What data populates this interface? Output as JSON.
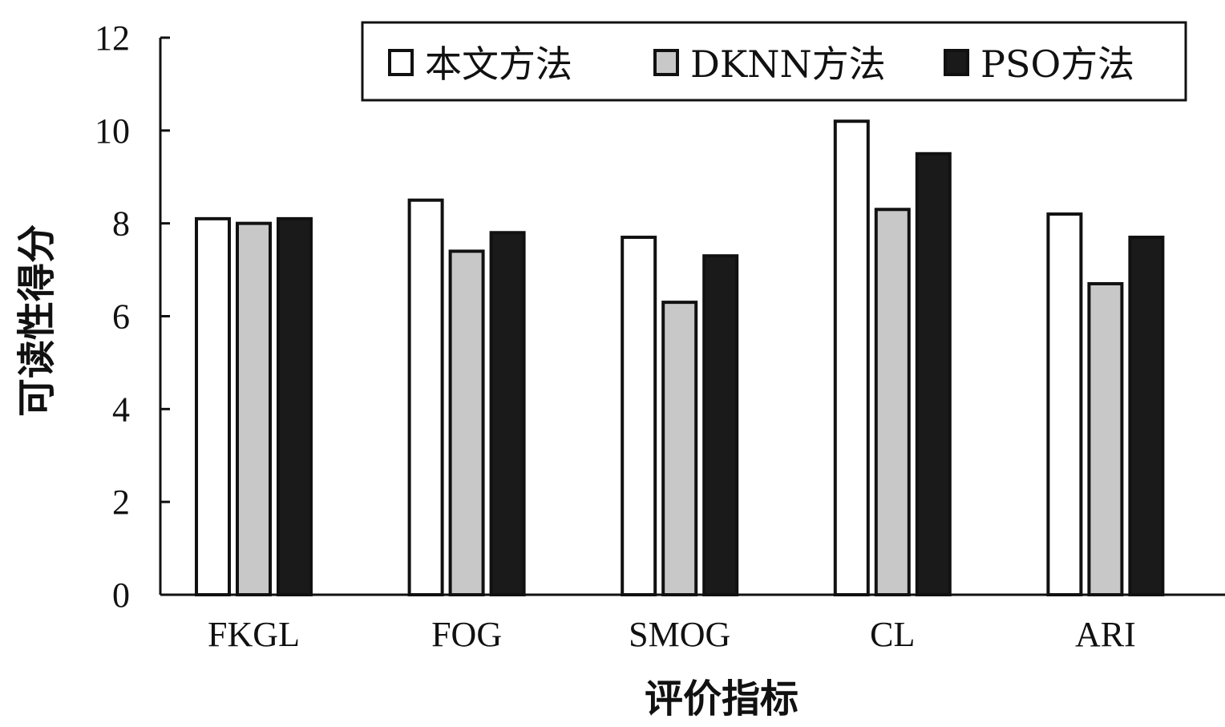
{
  "chart_data": {
    "type": "bar",
    "categories": [
      "FKGL",
      "FOG",
      "SMOG",
      "CL",
      "ARI"
    ],
    "series": [
      {
        "name": "本文方法",
        "values": [
          8.1,
          8.5,
          7.7,
          10.2,
          8.2
        ],
        "color": "#ffffff"
      },
      {
        "name": "DKNN方法",
        "values": [
          8.0,
          7.4,
          6.3,
          8.3,
          6.7
        ],
        "color": "#c8c8c8"
      },
      {
        "name": "PSO方法",
        "values": [
          8.1,
          7.8,
          7.3,
          9.5,
          7.7
        ],
        "color": "#1a1a1a"
      }
    ],
    "xlabel": "评价指标",
    "ylabel": "可读性得分",
    "ylim": [
      0,
      12
    ],
    "yticks": [
      0,
      2,
      4,
      6,
      8,
      10,
      12
    ],
    "grid": false,
    "legend": "top-right"
  }
}
